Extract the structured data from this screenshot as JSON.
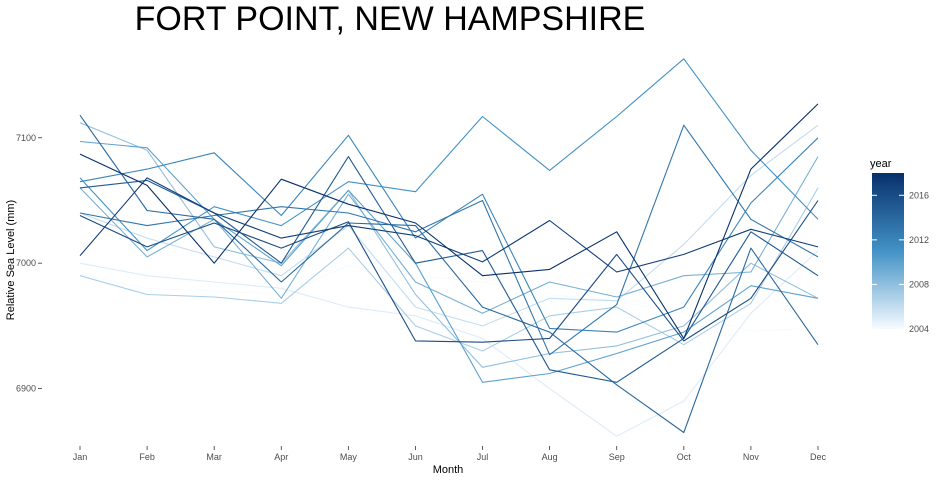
{
  "chart_data": {
    "type": "line",
    "title": "FORT POINT,  NEW HAMPSHIRE",
    "xlabel": "Month",
    "ylabel": "Relative Sea Level (mm)",
    "categories": [
      "Jan",
      "Feb",
      "Mar",
      "Apr",
      "May",
      "Jun",
      "Jul",
      "Aug",
      "Sep",
      "Oct",
      "Nov",
      "Dec"
    ],
    "ylim": [
      6855,
      7170
    ],
    "yticks": [
      6900,
      7000,
      7100
    ],
    "grid": false,
    "legend": {
      "title": "year",
      "position": "right",
      "range": [
        2004,
        2018
      ],
      "ticks": [
        2004,
        2008,
        2012,
        2016
      ],
      "color_low": "#f7fbff",
      "color_high": "#08306b"
    },
    "series": [
      {
        "year": 2004,
        "values": [
          6991,
          6980,
          6978,
          6975,
          6998,
          6990,
          6985,
          6975,
          6970,
          6960,
          6946,
          6948
        ]
      },
      {
        "year": 2005,
        "values": [
          7000,
          6990,
          6985,
          6980,
          6965,
          6958,
          6940,
          6900,
          6862,
          6890,
          6960,
          7010
        ]
      },
      {
        "year": 2006,
        "values": [
          7040,
          7020,
          7005,
          6990,
          7030,
          6965,
          6950,
          6972,
          6970,
          7015,
          7070,
          7110
        ]
      },
      {
        "year": 2007,
        "values": [
          6990,
          6975,
          6973,
          6968,
          7012,
          6950,
          6930,
          6958,
          6965,
          6935,
          6968,
          7060
        ]
      },
      {
        "year": 2008,
        "values": [
          7112,
          7090,
          7013,
          7000,
          7058,
          6975,
          6917,
          6928,
          6934,
          6950,
          7000,
          6972
        ]
      },
      {
        "year": 2009,
        "values": [
          7060,
          7005,
          7035,
          6972,
          7055,
          6985,
          6960,
          6985,
          6973,
          6990,
          6993,
          7085
        ]
      },
      {
        "year": 2010,
        "values": [
          7097,
          7092,
          7035,
          6998,
          7058,
          7000,
          6905,
          6912,
          6928,
          6945,
          6982,
          6972
        ]
      },
      {
        "year": 2011,
        "values": [
          7068,
          7010,
          7045,
          7030,
          7065,
          7057,
          7117,
          7074,
          7117,
          7163,
          7090,
          7035
        ]
      },
      {
        "year": 2012,
        "values": [
          7065,
          7075,
          7088,
          7038,
          7102,
          7020,
          7055,
          6948,
          6945,
          6965,
          7048,
          7100
        ]
      },
      {
        "year": 2013,
        "values": [
          7040,
          7030,
          7038,
          7045,
          7040,
          7025,
          7050,
          6927,
          6967,
          7110,
          7035,
          7005
        ]
      },
      {
        "year": 2014,
        "values": [
          7118,
          7042,
          7035,
          6985,
          7032,
          7030,
          6965,
          6945,
          6903,
          6865,
          7012,
          6935
        ]
      },
      {
        "year": 2015,
        "values": [
          7060,
          7066,
          7040,
          7000,
          7085,
          7000,
          7010,
          6915,
          6905,
          6940,
          7025,
          6990
        ]
      },
      {
        "year": 2016,
        "values": [
          7038,
          7013,
          7032,
          7012,
          7033,
          6938,
          6937,
          6940,
          7007,
          6938,
          6972,
          7050
        ]
      },
      {
        "year": 2017,
        "values": [
          7006,
          7068,
          7040,
          7020,
          7030,
          7022,
          7001,
          7034,
          6993,
          7007,
          7027,
          7013
        ]
      },
      {
        "year": 2018,
        "values": [
          7087,
          7062,
          7000,
          7067,
          7047,
          7032,
          6990,
          6995,
          7025,
          6940,
          7075,
          7127
        ]
      }
    ]
  }
}
